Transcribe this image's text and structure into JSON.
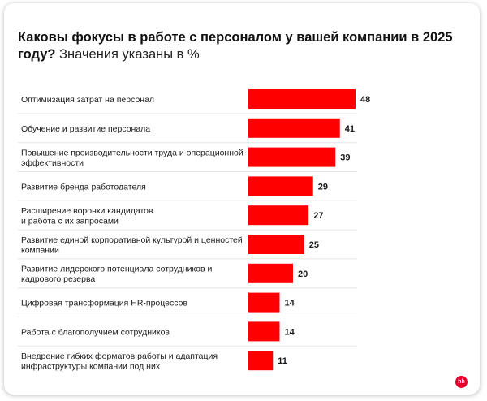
{
  "chart_data": {
    "type": "bar",
    "orientation": "horizontal",
    "title": "Каковы фокусы в работе с персоналом у вашей компании в 2025 году?",
    "subtitle": "Значения указаны в %",
    "categories": [
      [
        "Оптимизация затрат на персонал"
      ],
      [
        "Обучение и развитие персонала"
      ],
      [
        "Повышение производительности труда и операционной",
        "эффективности"
      ],
      [
        "Развитие бренда работодателя"
      ],
      [
        "Расширение воронки кандидатов",
        "и работа с их запросами"
      ],
      [
        "Развитие единой корпоративной культурой и ценностей",
        "компании"
      ],
      [
        "Развитие лидерского потенциала сотрудников и",
        "кадрового резерва"
      ],
      [
        "Цифровая трансформация HR-процессов"
      ],
      [
        "Работа с благополучием сотрудников"
      ],
      [
        "Внедрение гибких форматов работы и адаптация",
        "инфраструктуры компании под них"
      ]
    ],
    "values": [
      48,
      41,
      39,
      29,
      27,
      25,
      20,
      14,
      14,
      11
    ],
    "unit": "%",
    "bar_color": "#ff0000",
    "xlim": [
      0,
      48
    ],
    "grid": false,
    "legend": "none"
  },
  "logo": {
    "text": "hh",
    "color": "#e4002b"
  }
}
